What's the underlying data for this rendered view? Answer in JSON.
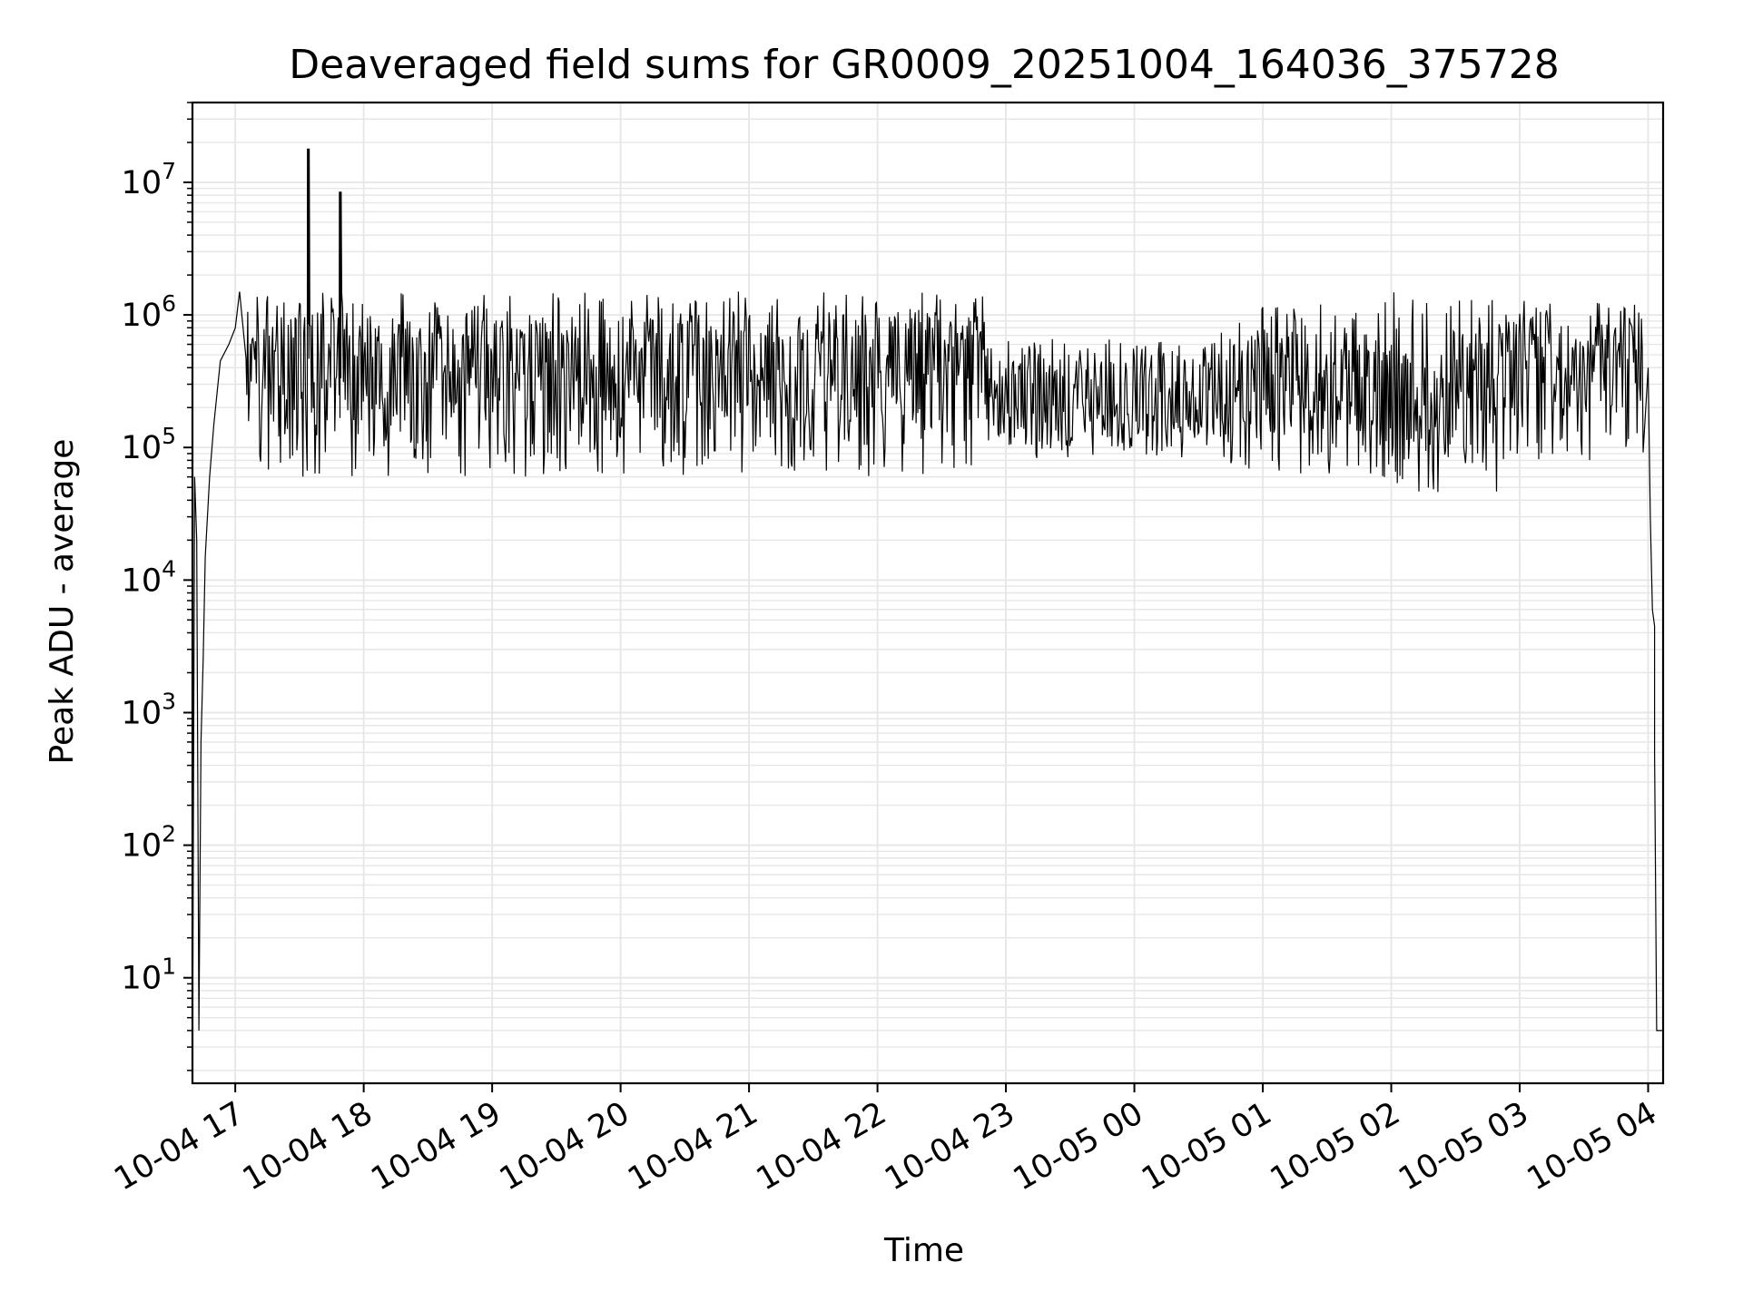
{
  "chart_data": {
    "type": "line",
    "title": "Deaveraged field sums for GR0009_20251004_164036_375728",
    "xlabel": "Time",
    "ylabel": "Peak ADU - average",
    "x_axis": {
      "kind": "time",
      "range": [
        "2025-10-04 16:40",
        "2025-10-05 04:07"
      ],
      "ticks": [
        "2025-10-04 17:00",
        "2025-10-04 18:00",
        "2025-10-04 19:00",
        "2025-10-04 20:00",
        "2025-10-04 21:00",
        "2025-10-04 22:00",
        "2025-10-04 23:00",
        "2025-10-05 00:00",
        "2025-10-05 01:00",
        "2025-10-05 02:00",
        "2025-10-05 03:00",
        "2025-10-05 04:00"
      ],
      "tick_labels": [
        "10-04 17",
        "10-04 18",
        "10-04 19",
        "10-04 20",
        "10-04 21",
        "10-04 22",
        "10-04 23",
        "10-05 00",
        "10-05 01",
        "10-05 02",
        "10-05 03",
        "10-05 04"
      ]
    },
    "y_axis": {
      "scale": "log",
      "range": [
        1.6,
        40000000
      ],
      "ticks": [
        10,
        100,
        1000,
        10000,
        100000,
        1000000,
        10000000
      ],
      "tick_labels": [
        {
          "base": "10",
          "exp": "1"
        },
        {
          "base": "10",
          "exp": "2"
        },
        {
          "base": "10",
          "exp": "3"
        },
        {
          "base": "10",
          "exp": "4"
        },
        {
          "base": "10",
          "exp": "5"
        },
        {
          "base": "10",
          "exp": "6"
        },
        {
          "base": "10",
          "exp": "7"
        }
      ]
    },
    "grid": "major and minor",
    "legend": "none",
    "series": [
      {
        "color": "#000000",
        "points": [
          [
            "2025-10-04 16:40",
            1.6
          ],
          [
            "2025-10-04 16:41",
            60000
          ],
          [
            "2025-10-04 16:42",
            20000
          ],
          [
            "2025-10-04 16:43",
            4
          ],
          [
            "2025-10-04 16:44",
            600
          ],
          [
            "2025-10-04 16:45",
            2500
          ],
          [
            "2025-10-04 16:46",
            15000
          ],
          [
            "2025-10-04 16:48",
            60000
          ],
          [
            "2025-10-04 16:50",
            150000
          ],
          [
            "2025-10-04 16:53",
            450000
          ],
          [
            "2025-10-04 16:57",
            600000
          ],
          [
            "2025-10-04 17:00",
            800000
          ],
          [
            "2025-10-04 17:02",
            1500000
          ],
          [
            "2025-10-04 17:05",
            900000
          ],
          [
            "2025-10-04 17:34",
            18000000
          ],
          [
            "2025-10-04 17:49",
            8500000
          ],
          [
            "2025-10-05 03:58",
            1300000
          ],
          [
            "2025-10-05 04:00",
            400000
          ],
          [
            "2025-10-05 04:01",
            30000
          ],
          [
            "2025-10-05 04:02",
            6000
          ],
          [
            "2025-10-05 04:03",
            4500
          ],
          [
            "2025-10-05 04:03",
            500
          ],
          [
            "2025-10-05 04:04",
            4
          ],
          [
            "2025-10-05 04:07",
            4
          ]
        ],
        "noise_envelope": {
          "description": "dense rapid fluctuation between the band lows and highs",
          "segments": [
            {
              "from": "2025-10-04 17:05",
              "to": "2025-10-04 22:50",
              "low": 60000,
              "high": 1500000,
              "typical": 400000
            },
            {
              "from": "2025-10-04 22:50",
              "to": "2025-10-05 00:40",
              "low": 80000,
              "high": 700000,
              "typical": 250000
            },
            {
              "from": "2025-10-05 00:40",
              "to": "2025-10-05 01:55",
              "low": 60000,
              "high": 1200000,
              "typical": 300000
            },
            {
              "from": "2025-10-05 01:55",
              "to": "2025-10-05 02:50",
              "low": 45000,
              "high": 1600000,
              "typical": 250000
            },
            {
              "from": "2025-10-05 02:50",
              "to": "2025-10-05 03:58",
              "low": 80000,
              "high": 1300000,
              "typical": 500000
            }
          ]
        }
      }
    ]
  }
}
